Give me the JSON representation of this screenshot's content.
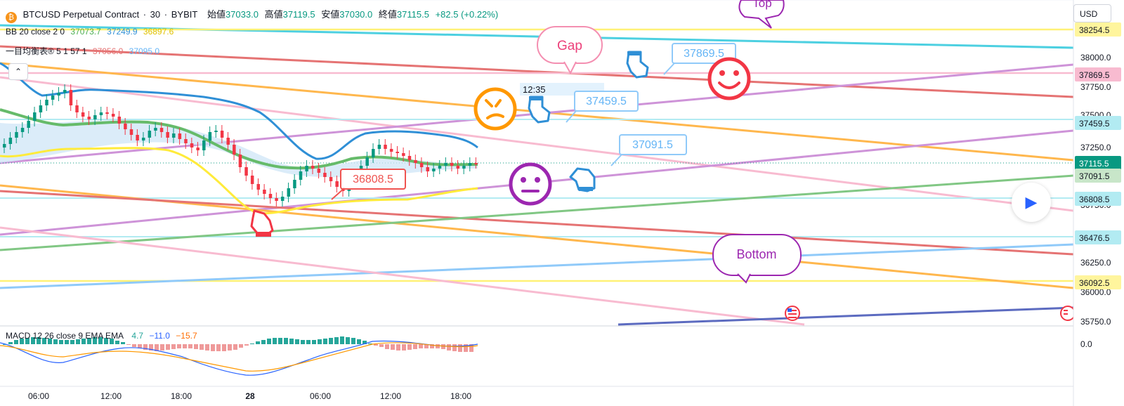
{
  "header": {
    "symbol": "BTCUSD Perpetual Contract",
    "sep1": "·",
    "interval": "30",
    "sep2": "·",
    "exchange": "BYBIT",
    "open_label": "始値",
    "open": "37033.0",
    "high_label": "高値",
    "high": "37119.5",
    "low_label": "安値",
    "low": "37030.0",
    "close_label": "終値",
    "close": "37115.5",
    "change": "+82.5 (+0.22%)"
  },
  "indicators": {
    "bb": {
      "name": "BB 20 close 2 0",
      "basis": "37073.7",
      "upper": "37249.9",
      "lower": "36897.6"
    },
    "ichimoku": {
      "name": "一目均衡表® 5 1 57 1",
      "v1": "37056.0",
      "v2": "37095.0"
    },
    "macd": {
      "name": "MACD 12 26 close 9 EMA EMA",
      "hist": "4.7",
      "macd": "−11.0",
      "signal": "−15.7"
    }
  },
  "price_scale": {
    "currency": "USD",
    "ticks": [
      "38000.0",
      "37750.0",
      "37500.0",
      "37250.0",
      "36750.0",
      "36250.0",
      "36000.0",
      "35750.0"
    ],
    "labels": [
      {
        "text": "38254.5",
        "bg": "#fff59d"
      },
      {
        "text": "37869.5",
        "bg": "#f8bbd0"
      },
      {
        "text": "37459.5",
        "bg": "#b2ebf2"
      },
      {
        "text": "37115.5",
        "bg": "#089981"
      },
      {
        "text": "37091.5",
        "bg": "#c8e6c9"
      },
      {
        "text": "36808.5",
        "bg": "#b2ebf2"
      },
      {
        "text": "36476.5",
        "bg": "#b2ebf2"
      },
      {
        "text": "36092.5",
        "bg": "#fff59d"
      }
    ],
    "macd_tick": "0.0"
  },
  "time_axis": [
    "06:00",
    "12:00",
    "18:00",
    "28",
    "06:00",
    "12:00",
    "18:00"
  ],
  "annotations": {
    "top": "Top",
    "gap": "Gap",
    "bottom": "Bottom",
    "time_note": "12:35",
    "price_callouts": [
      "37869.5",
      "37459.5",
      "37091.5",
      "36808.5"
    ]
  },
  "colors": {
    "up": "#089981",
    "down": "#f23645",
    "bb_upper": "#2f8fd6",
    "bb_basis": "#4caf50",
    "bb_lower": "#ffeb3b",
    "cloud": "#cfe5f7",
    "macd_line": "#2962ff",
    "signal_line": "#ff6d00"
  },
  "icons": [
    "bitcoin-icon",
    "chevron-up-icon",
    "play-icon",
    "pointing-hand-icon",
    "smiley-icon",
    "neutral-face-icon",
    "confused-face-icon",
    "us-flag-icon"
  ]
}
